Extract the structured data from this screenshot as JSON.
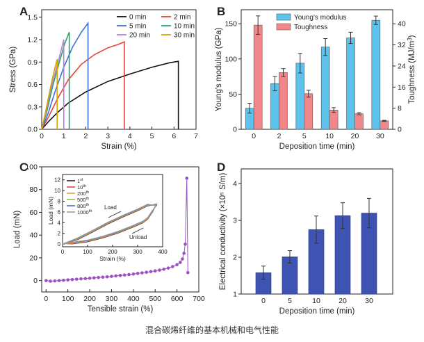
{
  "caption": "混合碳烯纤维的基本机械和电气性能",
  "chart_data": [
    {
      "panel": "A",
      "type": "line",
      "xlabel": "Strain (%)",
      "ylabel": "Stress (GPa)",
      "xlim": [
        0,
        7
      ],
      "ylim": [
        0,
        1.6
      ],
      "xticks": [
        "0",
        "1",
        "2",
        "3",
        "4",
        "5",
        "6",
        "7"
      ],
      "yticks": [
        "0.0",
        "0.3",
        "0.6",
        "0.9",
        "1.2",
        "1.5"
      ],
      "legend_position": "top-right",
      "series": [
        {
          "name": "0 min",
          "color": "#111111",
          "x": [
            0,
            0.3,
            0.7,
            1.2,
            2.0,
            3.0,
            4.0,
            5.0,
            5.8,
            6.2
          ],
          "y": [
            0,
            0.1,
            0.22,
            0.35,
            0.5,
            0.64,
            0.74,
            0.83,
            0.89,
            0.91
          ]
        },
        {
          "name": "2 min",
          "color": "#e8413c",
          "x": [
            0,
            0.3,
            0.7,
            1.2,
            1.8,
            2.4,
            3.0,
            3.5,
            3.75
          ],
          "y": [
            0,
            0.16,
            0.4,
            0.66,
            0.87,
            1.0,
            1.09,
            1.14,
            1.17
          ]
        },
        {
          "name": "5 min",
          "color": "#3f6fd8",
          "x": [
            0,
            0.3,
            0.6,
            1.0,
            1.4,
            1.8,
            2.1
          ],
          "y": [
            0,
            0.22,
            0.5,
            0.83,
            1.1,
            1.3,
            1.42
          ]
        },
        {
          "name": "10 min",
          "color": "#29a36a",
          "x": [
            0,
            0.25,
            0.5,
            0.8,
            1.05,
            1.25
          ],
          "y": [
            0,
            0.26,
            0.58,
            0.9,
            1.15,
            1.3
          ]
        },
        {
          "name": "20 min",
          "color": "#b77fd6",
          "x": [
            0,
            0.2,
            0.4,
            0.65,
            0.85,
            1.0
          ],
          "y": [
            0,
            0.24,
            0.52,
            0.8,
            1.02,
            1.2
          ]
        },
        {
          "name": "30 min",
          "color": "#d9a400",
          "x": [
            0,
            0.15,
            0.3,
            0.5,
            0.7
          ],
          "y": [
            0,
            0.2,
            0.42,
            0.7,
            0.94
          ]
        }
      ]
    },
    {
      "panel": "B",
      "type": "bar",
      "xlabel": "Deposition time (min)",
      "ylabel": "Young's modulus (GPa)",
      "ylabel_right": "Toughness (MJ/m3)",
      "categories": [
        "0",
        "2",
        "5",
        "10",
        "20",
        "30"
      ],
      "ylim": [
        0,
        170
      ],
      "ylim_right": [
        0,
        45.33
      ],
      "yticks": [
        "0",
        "50",
        "100",
        "150"
      ],
      "yticks_right": [
        "0",
        "8",
        "16",
        "24",
        "32",
        "40"
      ],
      "legend_position": "top-center",
      "series": [
        {
          "name": "Young's modulus",
          "color": "#5dc2ec",
          "axis": "left",
          "values": [
            30,
            65,
            94,
            117,
            130,
            155
          ],
          "errors": [
            7,
            10,
            14,
            12,
            8,
            6
          ]
        },
        {
          "name": "Toughness",
          "color": "#f2878a",
          "axis": "right",
          "values": [
            39.5,
            21.5,
            13.5,
            7.3,
            5.9,
            3.2
          ],
          "errors": [
            3.5,
            1.5,
            1.3,
            0.9,
            0.4,
            0.2
          ]
        }
      ]
    },
    {
      "panel": "C",
      "type": "scatter",
      "xlabel": "Tensible strain (%)",
      "ylabel": "Load (mN)",
      "xlim": [
        -20,
        700
      ],
      "ylim": [
        -10,
        100
      ],
      "xticks": [
        "0",
        "100",
        "200",
        "300",
        "400",
        "500",
        "600",
        "700"
      ],
      "yticks": [
        "0",
        "20",
        "40",
        "60",
        "80",
        "100"
      ],
      "series": [
        {
          "name": "",
          "color": "#9b50c4",
          "x": [
            0,
            20,
            40,
            60,
            80,
            100,
            120,
            140,
            160,
            180,
            200,
            220,
            240,
            260,
            280,
            300,
            320,
            340,
            360,
            380,
            400,
            420,
            440,
            460,
            480,
            500,
            520,
            540,
            560,
            580,
            600,
            615,
            625,
            632,
            638,
            645,
            650
          ],
          "y": [
            0,
            -0.5,
            -0.3,
            0,
            0.3,
            0.6,
            0.9,
            1.2,
            1.5,
            1.8,
            2.1,
            2.4,
            2.7,
            3,
            3.3,
            3.7,
            4.1,
            4.5,
            4.9,
            5.3,
            5.8,
            6.3,
            6.8,
            7.3,
            7.9,
            8.5,
            9.2,
            10,
            11,
            12.3,
            14,
            16,
            19,
            24,
            32,
            90,
            7
          ]
        }
      ],
      "inset": {
        "xlabel": "Strain (%)",
        "ylabel": "Load (mN)",
        "xlim": [
          0,
          400
        ],
        "ylim": [
          -0.5,
          13
        ],
        "xticks": [
          "0",
          "100",
          "200",
          "300",
          "400"
        ],
        "yticks": [
          "0",
          "2",
          "4",
          "6",
          "8",
          "10",
          "12"
        ],
        "annotations": [
          "Load",
          "Unload"
        ],
        "series": [
          {
            "name": "1st",
            "sup": "st",
            "base": "1",
            "color": "#222222"
          },
          {
            "name": "10th",
            "sup": "th",
            "base": "10",
            "color": "#e8413c"
          },
          {
            "name": "200th",
            "sup": "th",
            "base": "200",
            "color": "#e8a23c"
          },
          {
            "name": "500th",
            "sup": "th",
            "base": "500",
            "color": "#8bc34a"
          },
          {
            "name": "800th",
            "sup": "th",
            "base": "800",
            "color": "#3f6fd8"
          },
          {
            "name": "1000th",
            "sup": "th",
            "base": "1000",
            "color": "#9c9c9c"
          }
        ]
      }
    },
    {
      "panel": "D",
      "type": "bar",
      "xlabel": "Deposition time (min)",
      "ylabel": "Electrical conductivity (×10⁵ S/m)",
      "categories": [
        "0",
        "5",
        "10",
        "20",
        "30"
      ],
      "ylim": [
        1,
        4.4
      ],
      "yticks": [
        "1",
        "2",
        "3",
        "4"
      ],
      "series": [
        {
          "name": "",
          "color": "#3f53b2",
          "values": [
            1.58,
            2.01,
            2.75,
            3.13,
            3.2
          ],
          "errors": [
            0.18,
            0.17,
            0.37,
            0.35,
            0.4
          ]
        }
      ]
    }
  ]
}
